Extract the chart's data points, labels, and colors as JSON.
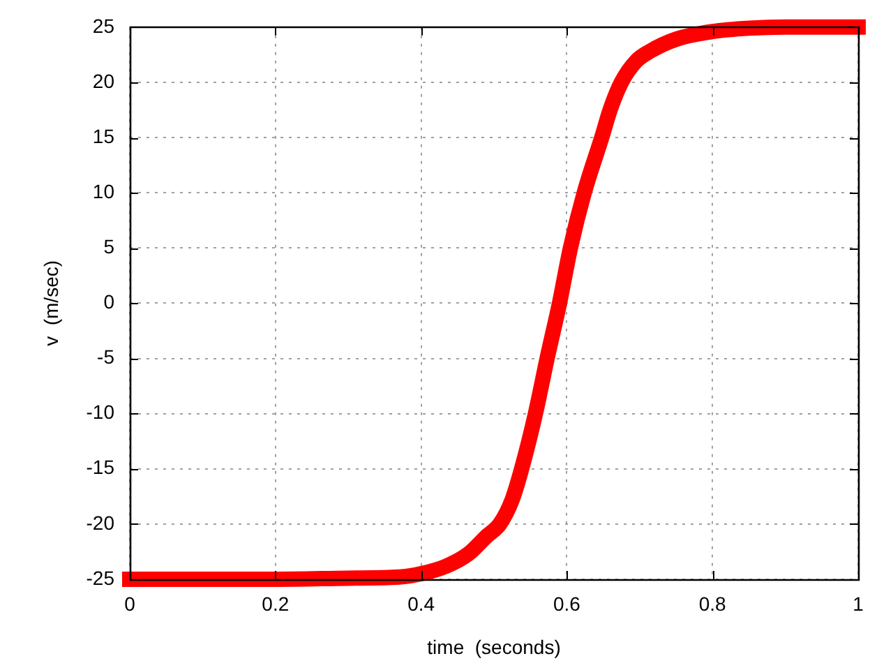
{
  "chart_data": {
    "type": "line",
    "xlabel": "time  (seconds)",
    "ylabel": "v  (m/sec)",
    "x": [
      0,
      0.1,
      0.2,
      0.3,
      0.37,
      0.4,
      0.435,
      0.465,
      0.49,
      0.508,
      0.525,
      0.538,
      0.557,
      0.573,
      0.59,
      0.605,
      0.624,
      0.648,
      0.66,
      0.675,
      0.695,
      0.714,
      0.75,
      0.8,
      0.85,
      0.9,
      0.95,
      1
    ],
    "values": [
      -25,
      -25,
      -25,
      -24.9,
      -24.8,
      -24.5,
      -23.8,
      -22.7,
      -21.1,
      -20,
      -17.8,
      -15,
      -10,
      -5,
      0,
      5,
      10,
      15,
      17.6,
      20,
      21.9,
      22.8,
      23.9,
      24.6,
      24.9,
      25,
      25,
      25
    ],
    "color": "#ff0000",
    "xlim": [
      0,
      1
    ],
    "ylim": [
      -25,
      25
    ],
    "xticks": [
      0,
      0.2,
      0.4,
      0.6,
      0.8,
      1
    ],
    "yticks": [
      -25,
      -20,
      -15,
      -10,
      -5,
      0,
      5,
      10,
      15,
      20,
      25
    ],
    "grid": true,
    "legend": false,
    "marker": "none",
    "line_style": "solid"
  }
}
